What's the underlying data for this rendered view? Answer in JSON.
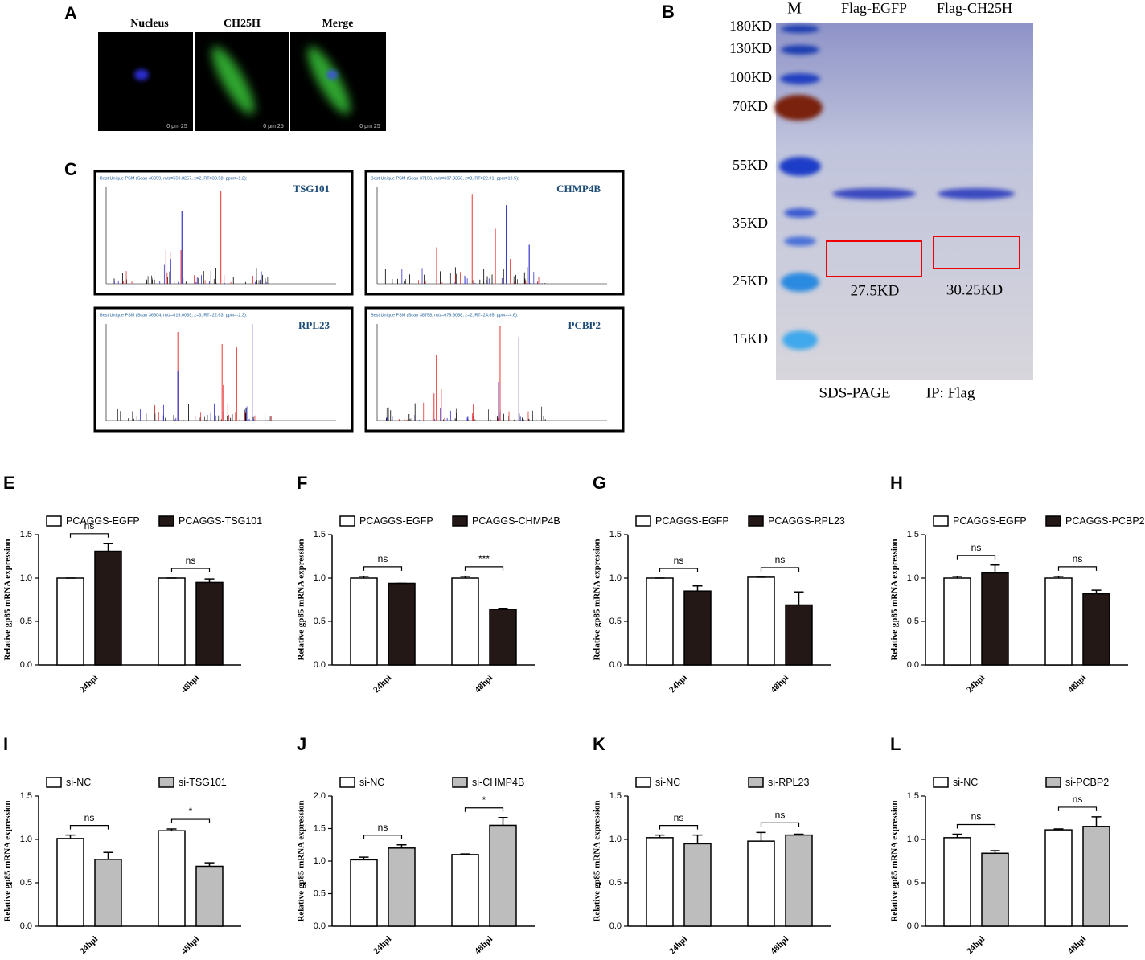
{
  "figure": {
    "A": {
      "label": "A",
      "titles": [
        "Nucleus",
        "CH25H",
        "Merge"
      ],
      "scale": "0 μm 25"
    },
    "B": {
      "label": "B",
      "lanes": [
        "M",
        "Flag-EGFP",
        "Flag-CH25H"
      ],
      "markers": [
        "180KD",
        "130KD",
        "100KD",
        "70KD",
        "55KD",
        "35KD",
        "25KD",
        "15KD"
      ],
      "boxes": [
        "27.5KD",
        "30.25KD"
      ],
      "footer": [
        "SDS-PAGE",
        "IP: Flag"
      ]
    },
    "C": {
      "label": "C",
      "spectra": [
        {
          "protein": "TSG101",
          "header": "Best Unique PSM (Scan 46959, m/z=559.8257, z=2, RT=33.58, ppm=-1.2):"
        },
        {
          "protein": "CHMP4B",
          "header": "Best Unique PSM (Scan 37156, m/z=607.3350, z=3, RT=22.91, ppm=19.5):"
        },
        {
          "protein": "RPL23",
          "header": "Best Unique PSM (Scan 36904, m/z=615.0039, z=3, RT=22.63, ppm=-2.3):"
        },
        {
          "protein": "PCBP2",
          "header": "Best Unique PSM (Scan 38758, m/z=679.9088, z=2, RT=24.65, ppm=-4.6):"
        }
      ]
    }
  },
  "chart_data": [
    {
      "panel": "E",
      "type": "bar",
      "ylabel": "Relative gp85 mRNA expression",
      "categories": [
        "24hpi",
        "48hpi"
      ],
      "series": [
        {
          "name": "PCAGGS-EGFP",
          "color": "#ffffff",
          "values": [
            1.0,
            1.0
          ],
          "errors": [
            0,
            0
          ]
        },
        {
          "name": "PCAGGS-TSG101",
          "color": "#231815",
          "values": [
            1.31,
            0.95
          ],
          "errors": [
            0.09,
            0.04
          ]
        }
      ],
      "annotations": [
        "ns",
        "ns"
      ],
      "ylim": [
        0,
        1.5
      ],
      "yticks": [
        {
          "value": 0,
          "label": "0.0"
        },
        0.5,
        {
          "value": 1,
          "label": "1.0"
        },
        1.5
      ]
    },
    {
      "panel": "F",
      "type": "bar",
      "ylabel": "Relative gp85 mRNA expression",
      "categories": [
        "24hpi",
        "48hpi"
      ],
      "series": [
        {
          "name": "PCAGGS-EGFP",
          "color": "#ffffff",
          "values": [
            1.0,
            1.0
          ],
          "errors": [
            0.02,
            0.02
          ]
        },
        {
          "name": "PCAGGS-CHMP4B",
          "color": "#231815",
          "values": [
            0.94,
            0.64
          ],
          "errors": [
            0,
            0.01
          ]
        }
      ],
      "annotations": [
        "ns",
        "***"
      ],
      "ylim": [
        0,
        1.5
      ],
      "yticks": [
        {
          "value": 0,
          "label": "0.0"
        },
        0.5,
        {
          "value": 1,
          "label": "1.0"
        },
        1.5
      ]
    },
    {
      "panel": "G",
      "type": "bar",
      "ylabel": "Relative gp85 mRNA expression",
      "categories": [
        "24hpi",
        "48hpi"
      ],
      "series": [
        {
          "name": "PCAGGS-EGFP",
          "color": "#ffffff",
          "values": [
            1.0,
            1.01
          ],
          "errors": [
            0,
            0
          ]
        },
        {
          "name": "PCAGGS-RPL23",
          "color": "#231815",
          "values": [
            0.85,
            0.69
          ],
          "errors": [
            0.06,
            0.15
          ]
        }
      ],
      "annotations": [
        "ns",
        "ns"
      ],
      "ylim": [
        0,
        1.5
      ],
      "yticks": [
        {
          "value": 0,
          "label": "0.0"
        },
        0.5,
        {
          "value": 1,
          "label": "1.0"
        },
        1.5
      ]
    },
    {
      "panel": "H",
      "type": "bar",
      "ylabel": "Relative gp85 mRNA expression",
      "categories": [
        "24hpi",
        "48hpi"
      ],
      "series": [
        {
          "name": "PCAGGS-EGFP",
          "color": "#ffffff",
          "values": [
            1.0,
            1.0
          ],
          "errors": [
            0.02,
            0.02
          ]
        },
        {
          "name": "PCAGGS-PCBP2",
          "color": "#231815",
          "values": [
            1.06,
            0.82
          ],
          "errors": [
            0.09,
            0.04
          ]
        }
      ],
      "annotations": [
        "ns",
        "ns"
      ],
      "ylim": [
        0,
        1.5
      ],
      "yticks": [
        {
          "value": 0,
          "label": "0.0"
        },
        0.5,
        {
          "value": 1,
          "label": "1.0"
        },
        1.5
      ]
    },
    {
      "panel": "I",
      "type": "bar",
      "ylabel": "Relative gp85 mRNA expression",
      "categories": [
        "24hpi",
        "48hpi"
      ],
      "series": [
        {
          "name": "si-NC",
          "color": "#ffffff",
          "values": [
            1.01,
            1.1
          ],
          "errors": [
            0.04,
            0.02
          ]
        },
        {
          "name": "si-TSG101",
          "color": "#bdbdbd",
          "values": [
            0.77,
            0.69
          ],
          "errors": [
            0.08,
            0.04
          ]
        }
      ],
      "annotations": [
        "ns",
        "*"
      ],
      "ylim": [
        0,
        1.5
      ],
      "yticks": [
        {
          "value": 0,
          "label": "0.0"
        },
        0.5,
        {
          "value": 1,
          "label": "1.0"
        },
        1.5
      ]
    },
    {
      "panel": "J",
      "type": "bar",
      "ylabel": "Relative gp85 mRNA expression",
      "categories": [
        "24hpi",
        "48hpi"
      ],
      "series": [
        {
          "name": "si-NC",
          "color": "#ffffff",
          "values": [
            1.02,
            1.1
          ],
          "errors": [
            0.04,
            0.01
          ]
        },
        {
          "name": "si-CHMP4B",
          "color": "#bdbdbd",
          "values": [
            1.2,
            1.55
          ],
          "errors": [
            0.05,
            0.12
          ]
        }
      ],
      "annotations": [
        "ns",
        "*"
      ],
      "ylim": [
        0,
        2
      ],
      "yticks": [
        {
          "value": 0,
          "label": "0.0"
        },
        0.5,
        {
          "value": 1,
          "label": "1.0"
        },
        1.5,
        {
          "value": 2,
          "label": "2.0"
        }
      ]
    },
    {
      "panel": "K",
      "type": "bar",
      "ylabel": "Relative gp85 mRNA expression",
      "categories": [
        "24hpi",
        "48hpi"
      ],
      "series": [
        {
          "name": "si-NC",
          "color": "#ffffff",
          "values": [
            1.02,
            0.98
          ],
          "errors": [
            0.03,
            0.1
          ]
        },
        {
          "name": "si-RPL23",
          "color": "#bdbdbd",
          "values": [
            0.95,
            1.05
          ],
          "errors": [
            0.1,
            0.01
          ]
        }
      ],
      "annotations": [
        "ns",
        "ns"
      ],
      "ylim": [
        0,
        1.5
      ],
      "yticks": [
        {
          "value": 0,
          "label": "0.0"
        },
        0.5,
        {
          "value": 1,
          "label": "1.0"
        },
        1.5
      ]
    },
    {
      "panel": "L",
      "type": "bar",
      "ylabel": "Relative gp85 mRNA expression",
      "categories": [
        "24hpi",
        "48hpi"
      ],
      "series": [
        {
          "name": "si-NC",
          "color": "#ffffff",
          "values": [
            1.02,
            1.11
          ],
          "errors": [
            0.04,
            0.01
          ]
        },
        {
          "name": "si-PCBP2",
          "color": "#bdbdbd",
          "values": [
            0.84,
            1.15
          ],
          "errors": [
            0.03,
            0.11
          ]
        }
      ],
      "annotations": [
        "ns",
        "ns"
      ],
      "ylim": [
        0,
        1.5
      ],
      "yticks": [
        {
          "value": 0,
          "label": "0.0"
        },
        0.5,
        {
          "value": 1,
          "label": "1.0"
        },
        1.5
      ]
    }
  ]
}
